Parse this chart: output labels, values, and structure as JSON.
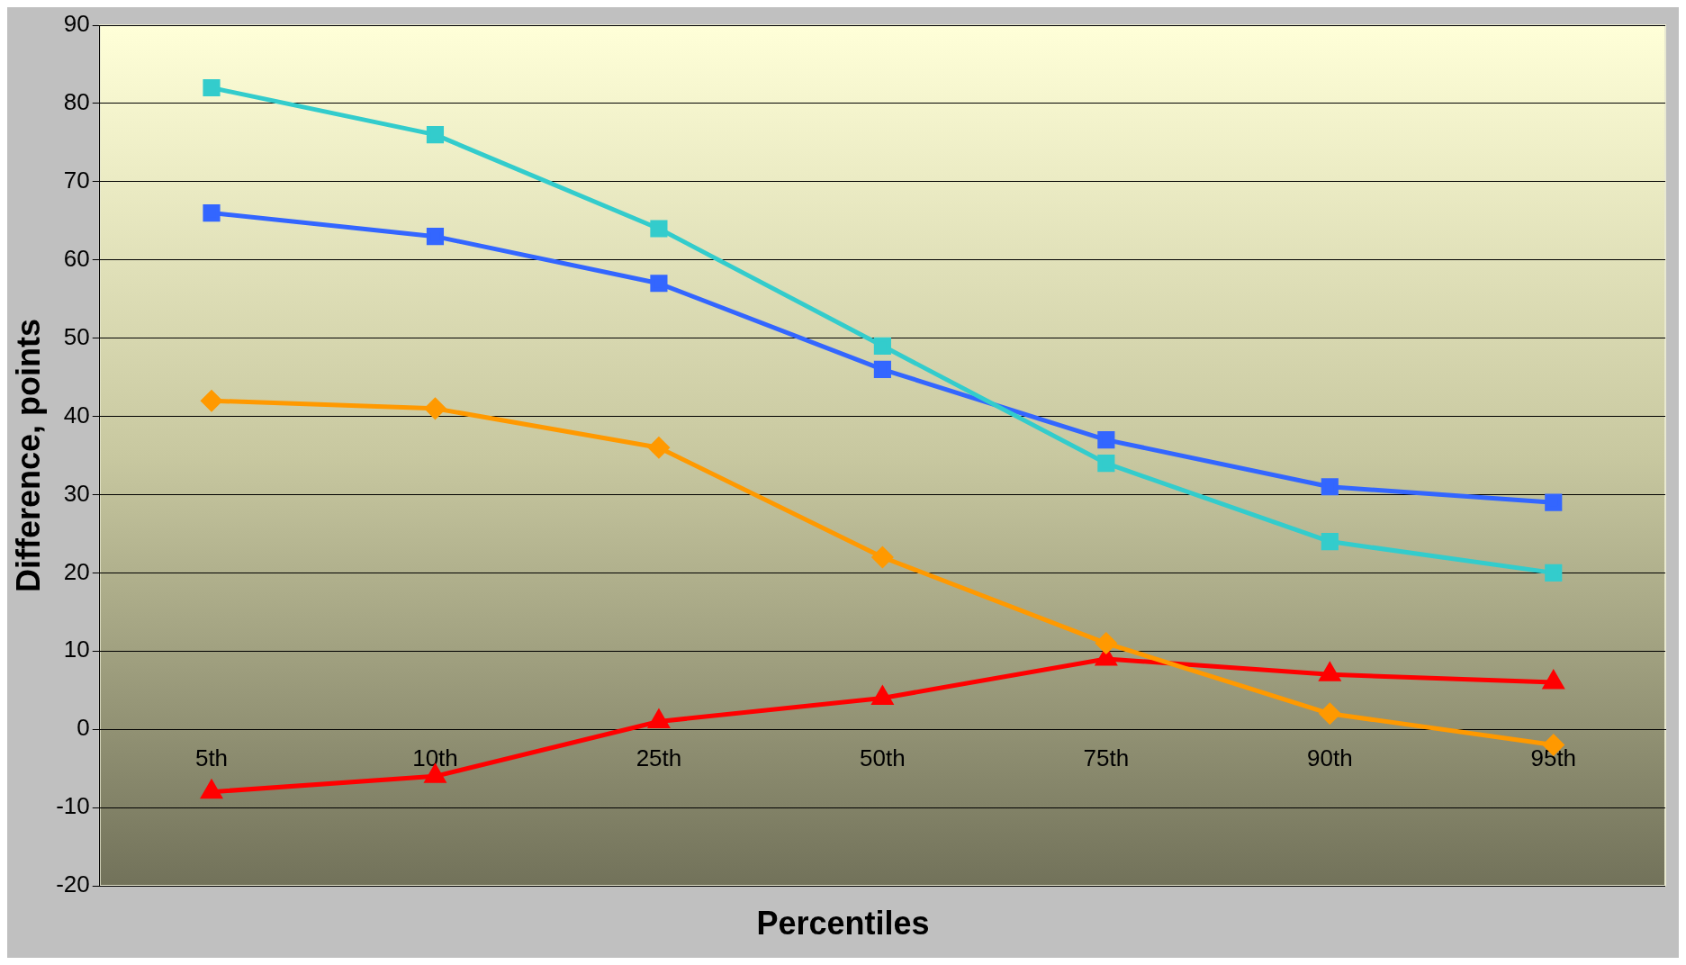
{
  "chart_data": {
    "type": "line",
    "xlabel": "Percentiles",
    "ylabel": "Difference, points",
    "categories": [
      "5th",
      "10th",
      "25th",
      "50th",
      "75th",
      "90th",
      "95th"
    ],
    "series": [
      {
        "color": "#33cccc",
        "marker": "square",
        "values": [
          82,
          76,
          64,
          49,
          34,
          24,
          20
        ]
      },
      {
        "color": "#3366ff",
        "marker": "square",
        "values": [
          66,
          63,
          57,
          46,
          37,
          31,
          29
        ]
      },
      {
        "color": "#ff9900",
        "marker": "diamond",
        "values": [
          42,
          41,
          36,
          22,
          11,
          2,
          -2
        ]
      },
      {
        "color": "#ff0000",
        "marker": "triangle",
        "values": [
          -8,
          -6,
          1,
          4,
          9,
          7,
          6
        ]
      }
    ],
    "ylim": [
      -20,
      90
    ],
    "yticks": [
      -20,
      -10,
      0,
      10,
      20,
      30,
      40,
      50,
      60,
      70,
      80,
      90
    ],
    "grid": "y",
    "legend": false
  }
}
